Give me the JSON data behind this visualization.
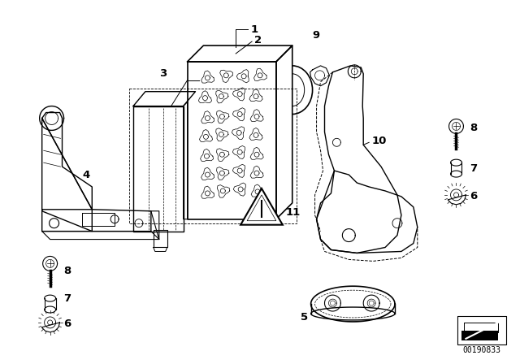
{
  "background_color": "#ffffff",
  "line_color": "#000000",
  "label_color": "#000000",
  "diagram_id": "00190833",
  "fig_width": 6.4,
  "fig_height": 4.48,
  "dpi": 100
}
